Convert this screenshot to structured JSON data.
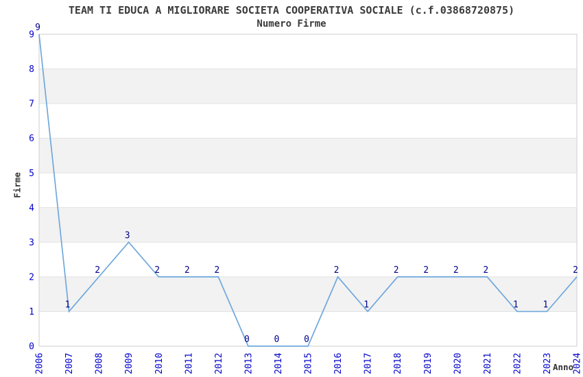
{
  "chart_data": {
    "type": "line",
    "title": "TEAM TI EDUCA A MIGLIORARE SOCIETA COOPERATIVA SOCIALE (c.f.03868720875)",
    "subtitle": "Numero Firme",
    "xlabel": "Anno",
    "ylabel": "Firme",
    "x": [
      2006,
      2007,
      2008,
      2009,
      2010,
      2011,
      2012,
      2013,
      2014,
      2015,
      2016,
      2017,
      2018,
      2019,
      2020,
      2021,
      2022,
      2023,
      2024
    ],
    "series": [
      {
        "name": "Numero Firme",
        "values": [
          9,
          1,
          2,
          3,
          2,
          2,
          2,
          0,
          0,
          0,
          2,
          1,
          2,
          2,
          2,
          2,
          1,
          1,
          2
        ]
      }
    ],
    "ylim": [
      0,
      9
    ],
    "yticks": [
      0,
      1,
      2,
      3,
      4,
      5,
      6,
      7,
      8,
      9
    ],
    "grid": true,
    "legend": "none",
    "band_style": "alternating horizontal bands, gray between odd ticks (1-2, 3-4, 5-6, 7-8)",
    "data_labels": true
  },
  "colors": {
    "background": "#ffffff",
    "band_gray": "#f2f2f2",
    "gridline": "#e2e2e2",
    "plot_border": "#d6d6d6",
    "line": "#6fa8dc",
    "tick_label": "#0000cc",
    "data_label": "#00008b",
    "text": "#3a3a3a"
  }
}
